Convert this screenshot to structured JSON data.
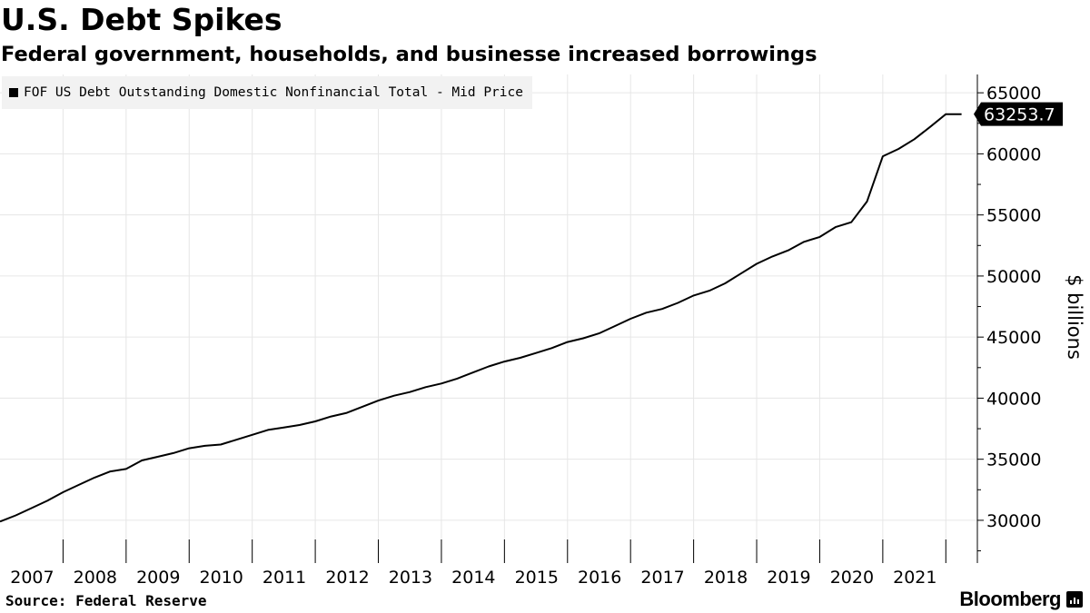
{
  "header": {
    "title": "U.S. Debt Spikes",
    "subtitle": "Federal government, households, and businesse increased borrowings"
  },
  "legend": {
    "label": "FOF US Debt Outstanding Domestic Nonfinancial Total - Mid Price"
  },
  "footer": {
    "source": "Source: Federal Reserve",
    "brand": "Bloomberg"
  },
  "chart_data": {
    "type": "line",
    "ylabel": "$ billions",
    "ylim": [
      26500,
      66500
    ],
    "y_ticks": [
      30000,
      35000,
      40000,
      45000,
      50000,
      55000,
      60000,
      65000
    ],
    "xlim": [
      2006.0,
      2021.5
    ],
    "x_ticks": [
      2007,
      2008,
      2009,
      2010,
      2011,
      2012,
      2013,
      2014,
      2015,
      2016,
      2017,
      2018,
      2019,
      2020,
      2021
    ],
    "grid": true,
    "legend_position": "top-left",
    "line_color": "#000000",
    "last_value_label": "63253.7",
    "series": [
      {
        "name": "FOF US Debt Outstanding Domestic Nonfinancial Total - Mid Price",
        "x": [
          2006.0,
          2006.25,
          2006.5,
          2006.75,
          2007.0,
          2007.25,
          2007.5,
          2007.75,
          2008.0,
          2008.25,
          2008.5,
          2008.75,
          2009.0,
          2009.25,
          2009.5,
          2009.75,
          2010.0,
          2010.25,
          2010.5,
          2010.75,
          2011.0,
          2011.25,
          2011.5,
          2011.75,
          2012.0,
          2012.25,
          2012.5,
          2012.75,
          2013.0,
          2013.25,
          2013.5,
          2013.75,
          2014.0,
          2014.25,
          2014.5,
          2014.75,
          2015.0,
          2015.25,
          2015.5,
          2015.75,
          2016.0,
          2016.25,
          2016.5,
          2016.75,
          2017.0,
          2017.25,
          2017.5,
          2017.75,
          2018.0,
          2018.25,
          2018.5,
          2018.75,
          2019.0,
          2019.25,
          2019.5,
          2019.75,
          2020.0,
          2020.25,
          2020.5,
          2020.75,
          2021.0,
          2021.25
        ],
        "values": [
          29900,
          30400,
          31000,
          31600,
          32300,
          32900,
          33500,
          34000,
          34200,
          34900,
          35200,
          35500,
          35900,
          36100,
          36200,
          36600,
          37000,
          37400,
          37600,
          37800,
          38100,
          38500,
          38800,
          39300,
          39800,
          40200,
          40500,
          40900,
          41200,
          41600,
          42100,
          42600,
          43000,
          43300,
          43700,
          44100,
          44600,
          44900,
          45300,
          45900,
          46500,
          47000,
          47300,
          47800,
          48400,
          48800,
          49400,
          50200,
          51000,
          51600,
          52100,
          52800,
          53200,
          54000,
          54400,
          56100,
          59800,
          60400,
          61200,
          62200,
          63253.7,
          63253.7
        ]
      }
    ]
  }
}
